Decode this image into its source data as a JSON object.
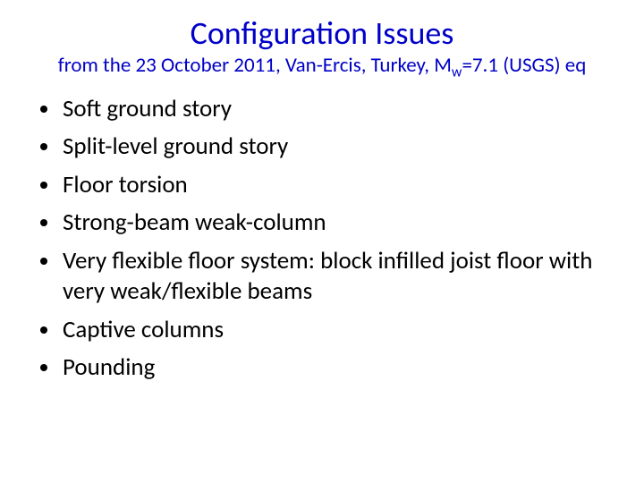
{
  "slide": {
    "title": "Configuration Issues",
    "subtitle_prefix": "from the 23 October 2011, Van-Ercis, Turkey,  M",
    "subtitle_sub": "w",
    "subtitle_suffix": "=7.1 (USGS) eq",
    "bullets": [
      "Soft ground story",
      "Split-level ground story",
      "Floor torsion",
      "Strong-beam weak-column",
      "Very flexible floor system: block infilled joist floor with very weak/flexible beams",
      "Captive columns",
      "Pounding"
    ],
    "colors": {
      "title": "#0000c8",
      "body": "#000000",
      "background": "#ffffff"
    },
    "typography": {
      "title_fontsize": 36,
      "subtitle_fontsize": 23,
      "bullet_fontsize": 27,
      "font_family": "Calibri"
    }
  }
}
